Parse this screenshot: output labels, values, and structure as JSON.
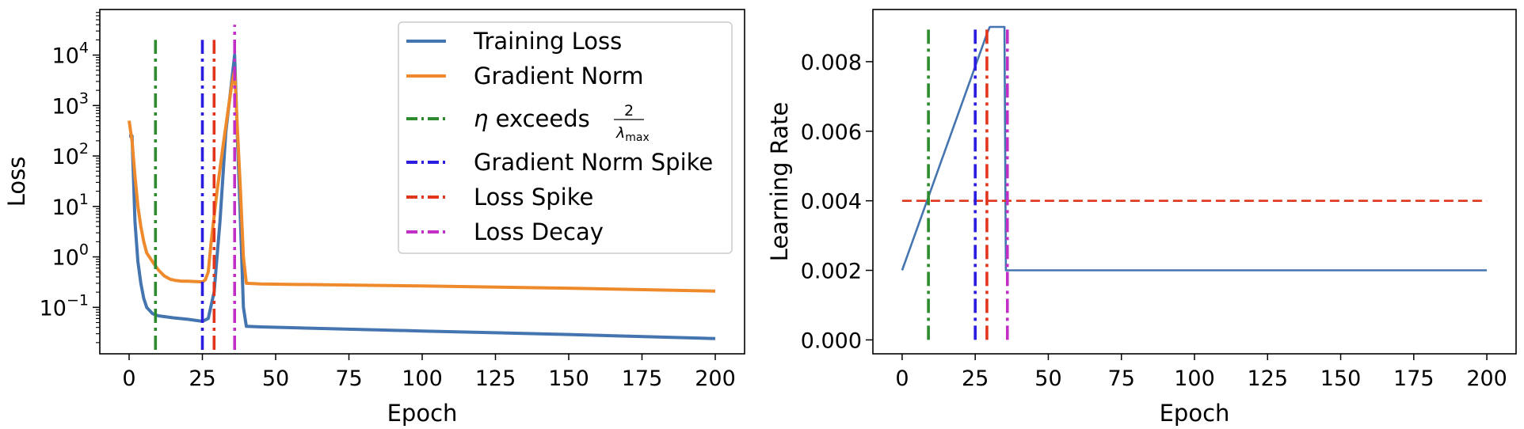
{
  "chart_data": [
    {
      "type": "line",
      "xlabel": "Epoch",
      "ylabel": "Loss",
      "xlim": [
        -10,
        210
      ],
      "ylim": [
        0.012,
        80000
      ],
      "yscale": "log",
      "xticks": [
        0,
        25,
        50,
        75,
        100,
        125,
        150,
        175,
        200
      ],
      "yticks": [
        {
          "value": 10000,
          "base": "10",
          "exp": "4"
        },
        {
          "value": 1000,
          "base": "10",
          "exp": "3"
        },
        {
          "value": 100,
          "base": "10",
          "exp": "2"
        },
        {
          "value": 10,
          "base": "10",
          "exp": "1"
        },
        {
          "value": 1,
          "base": "10",
          "exp": "0"
        },
        {
          "value": 0.1,
          "base": "10",
          "exp": "−1"
        }
      ],
      "grid": false,
      "legend_position": "top-right",
      "series": [
        {
          "name": "Training Loss",
          "color": "#4575b0",
          "x": [
            0,
            1,
            2,
            3,
            4,
            5,
            6,
            8,
            10,
            15,
            20,
            25,
            27,
            29,
            31,
            33,
            35,
            36,
            37,
            38,
            39,
            40,
            45,
            100,
            150,
            200
          ],
          "y": [
            250,
            250,
            5,
            0.8,
            0.3,
            0.15,
            0.1,
            0.075,
            0.068,
            0.062,
            0.058,
            0.053,
            0.06,
            0.2,
            5,
            300,
            3000,
            10000,
            200,
            5,
            0.1,
            0.042,
            0.041,
            0.034,
            0.029,
            0.024
          ]
        },
        {
          "name": "Gradient Norm",
          "color": "#ef8a2c",
          "x": [
            0,
            1,
            2,
            3,
            4,
            5,
            6,
            8,
            10,
            12,
            14,
            16,
            18,
            20,
            25,
            26,
            27,
            28,
            30,
            32,
            34,
            35,
            36,
            37,
            38,
            39,
            40,
            45,
            100,
            150,
            200
          ],
          "y": [
            500,
            200,
            40,
            10,
            4,
            2,
            1.2,
            0.8,
            0.55,
            0.42,
            0.36,
            0.34,
            0.33,
            0.33,
            0.32,
            0.35,
            0.5,
            2,
            20,
            150,
            1000,
            2500,
            5000,
            300,
            20,
            1,
            0.3,
            0.29,
            0.265,
            0.24,
            0.21
          ]
        }
      ],
      "vlines": [
        {
          "label": "η exceeds",
          "label_frac_num": "2",
          "label_frac_den": "λ",
          "label_frac_den_sub": "max",
          "x": 9,
          "color": "#2e8a2e",
          "ymax": 20000
        },
        {
          "label": "Gradient Norm Spike",
          "x": 25,
          "color": "#2a1de0",
          "ymax": 20000
        },
        {
          "label": "Loss Spike",
          "x": 29,
          "color": "#e2361c",
          "ymax": 20000
        },
        {
          "label": "Loss Decay",
          "x": 36,
          "color": "#c32fc6",
          "ymax": 40000
        }
      ]
    },
    {
      "type": "line",
      "xlabel": "Epoch",
      "ylabel": "Learning Rate",
      "xlim": [
        -10,
        210
      ],
      "ylim": [
        -0.0004,
        0.0095
      ],
      "xticks": [
        0,
        25,
        50,
        75,
        100,
        125,
        150,
        175,
        200
      ],
      "yticks": [
        "0.000",
        "0.002",
        "0.004",
        "0.006",
        "0.008"
      ],
      "ytick_values": [
        0,
        0.002,
        0.004,
        0.006,
        0.008
      ],
      "grid": false,
      "series": [
        {
          "color": "#4575b0",
          "x": [
            0,
            29,
            30,
            31,
            33,
            35,
            35.5,
            200
          ],
          "y": [
            0.002,
            0.0088,
            0.009,
            0.009,
            0.009,
            0.009,
            0.002,
            0.002
          ]
        }
      ],
      "hline": {
        "y": 0.004,
        "color": "#e2361c",
        "x": [
          0,
          200
        ]
      },
      "vlines": [
        {
          "x": 9,
          "color": "#2e8a2e",
          "ymax": 0.009
        },
        {
          "x": 25,
          "color": "#2a1de0",
          "ymax": 0.009
        },
        {
          "x": 29,
          "color": "#e2361c",
          "ymax": 0.009
        },
        {
          "x": 36,
          "color": "#c32fc6",
          "ymax": 0.009
        }
      ]
    }
  ]
}
